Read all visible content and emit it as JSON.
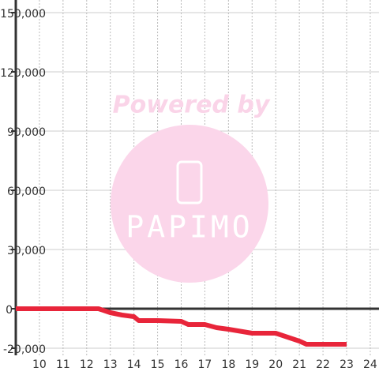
{
  "chart_data": {
    "type": "line",
    "watermark": {
      "top": "Powered by",
      "brand": "PAPIMO"
    },
    "x": [
      9,
      12.5,
      13,
      13.5,
      14,
      14.2,
      15,
      16,
      16.3,
      17,
      17.5,
      18,
      19,
      20,
      20.5,
      21,
      21.3,
      22,
      23
    ],
    "series": [
      {
        "color": "#e8253a",
        "values": [
          0,
          0,
          -2000,
          -3200,
          -4000,
          -6000,
          -6000,
          -6400,
          -8000,
          -8000,
          -9600,
          -10400,
          -12400,
          -12400,
          -14400,
          -16400,
          -18000,
          -18000,
          -18000
        ]
      }
    ],
    "xlim": [
      9,
      24.37
    ],
    "ylim": [
      -23600,
      150000
    ],
    "xticks": [
      10,
      11,
      12,
      13,
      14,
      15,
      16,
      17,
      18,
      19,
      20,
      21,
      22,
      23,
      24
    ],
    "yticks": [
      {
        "value": -20000,
        "label": "-20,000"
      },
      0,
      {
        "value": 30000,
        "label": "30,000"
      },
      {
        "value": 60000,
        "label": "60,000"
      },
      {
        "value": 90000,
        "label": "90,000"
      },
      {
        "value": 120000,
        "label": "120,000"
      },
      {
        "value": 150000,
        "label": "150,000"
      }
    ],
    "grid": true
  }
}
